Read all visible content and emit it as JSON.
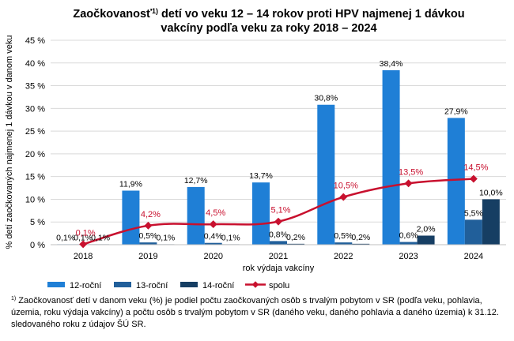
{
  "title": {
    "part1": "Zaočkovanosť",
    "marker": "1)",
    "part2": " detí vo veku 12 – 14 rokov proti HPV najmenej 1 dávkou",
    "line2": "vakcíny podľa veku za roky 2018 – 2024"
  },
  "footnote": {
    "marker": "1)",
    "text": " Zaočkovanosť  detí v danom veku (%) je podiel počtu zaočkovaných osôb s trvalým pobytom v SR (podľa veku, pohlavia, územia, roku výdaja vakcíny) a počtu osôb s trvalým pobytom v SR (daného veku, daného pohlavia a daného územia) k 31.12. sledovaného  roku z údajov ŠÚ SR."
  },
  "chart_data": {
    "type": "bar",
    "title": "Zaočkovanosť 1) detí vo veku 12 – 14 rokov proti HPV najmenej 1 dávkou vakcíny podľa veku za roky 2018 – 2024",
    "xlabel": "rok výdaja vakcíny",
    "ylabel": "% detí zaočkovaných najmenej 1 dávkou v danom veku",
    "ylim": [
      0,
      45
    ],
    "yticks": [
      "0 %",
      "5 %",
      "10 %",
      "15 %",
      "20 %",
      "25 %",
      "30 %",
      "35 %",
      "40 %",
      "45 %"
    ],
    "ytick_values": [
      0,
      5,
      10,
      15,
      20,
      25,
      30,
      35,
      40,
      45
    ],
    "grid": true,
    "legend_position": "bottom",
    "categories": [
      "2018",
      "2019",
      "2020",
      "2021",
      "2022",
      "2023",
      "2024"
    ],
    "series": [
      {
        "name": "12-roční",
        "kind": "bar",
        "color": "#1f7fd6",
        "values": [
          0.1,
          11.9,
          12.7,
          13.7,
          30.8,
          38.4,
          27.9
        ],
        "labels": [
          "0,1%",
          "11,9%",
          "12,7%",
          "13,7%",
          "30,8%",
          "38,4%",
          "27,9%"
        ]
      },
      {
        "name": "13-roční",
        "kind": "bar",
        "color": "#215f9a",
        "values": [
          0.1,
          0.5,
          0.4,
          0.8,
          0.5,
          0.6,
          5.5
        ],
        "labels": [
          "0,1%",
          "0,5%",
          "0,4%",
          "0,8%",
          "0,5%",
          "0,6%",
          "5,5%"
        ]
      },
      {
        "name": "14-roční",
        "kind": "bar",
        "color": "#163e63",
        "values": [
          0.1,
          0.1,
          0.1,
          0.2,
          0.2,
          2.0,
          10.0
        ],
        "labels": [
          "0,1%",
          "0,1%",
          "0,1%",
          "0,2%",
          "0,2%",
          "2,0%",
          "10,0%"
        ]
      },
      {
        "name": "spolu",
        "kind": "line",
        "color": "#c8102e",
        "values": [
          0.1,
          4.2,
          4.5,
          5.1,
          10.5,
          13.5,
          14.5
        ],
        "labels": [
          "0,1%",
          "4,2%",
          "4,5%",
          "5,1%",
          "10,5%",
          "13,5%",
          "14,5%"
        ]
      }
    ]
  }
}
